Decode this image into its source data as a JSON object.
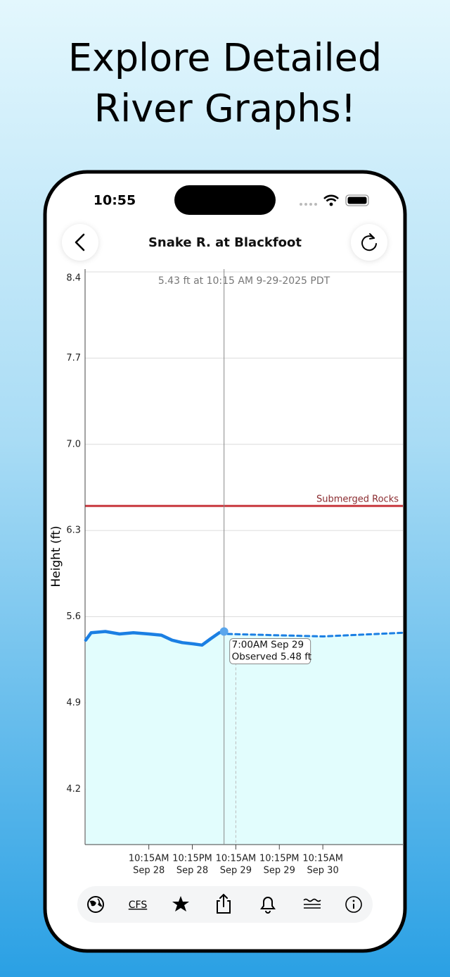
{
  "headline": [
    "Explore Detailed",
    "River Graphs!"
  ],
  "status_bar": {
    "time": "10:55"
  },
  "nav": {
    "title": "Snake R. at Blackfoot"
  },
  "toolbar": {
    "cfs": "CFS"
  },
  "chart_data": {
    "type": "line",
    "subtitle": "5.43 ft at 10:15 AM 9-29-2025 PDT",
    "y_label": "Height (ft)",
    "ylim": [
      3.75,
      8.4
    ],
    "yticks": [
      8.4,
      7.7,
      {
        "value": 7,
        "label": "7.0"
      },
      6.3,
      5.6,
      4.9,
      4.2
    ],
    "xlim": [
      "Sep 27 4:40PM",
      "Oct 1 8:20AM"
    ],
    "xticks": [
      {
        "value": "Sep 28 10:15AM",
        "label": [
          "10:15AM",
          "Sep 28"
        ]
      },
      {
        "value": "Sep 28 10:15PM",
        "label": [
          "10:15PM",
          "Sep 28"
        ]
      },
      {
        "value": "Sep 29 10:15AM",
        "label": [
          "10:15AM",
          "Sep 29"
        ]
      },
      {
        "value": "Sep 29 10:15PM",
        "label": [
          "10:15PM",
          "Sep 29"
        ]
      },
      {
        "value": "Sep 30 10:15AM",
        "label": [
          "10:15AM",
          "Sep 30"
        ]
      }
    ],
    "grid": true,
    "fill_color": "#e2fdfd",
    "series": [
      {
        "color": "#1b7fe3",
        "style": "solid",
        "x": [
          "Sep 27 4:50PM",
          "Sep 27 6:20PM",
          "Sep 27 10:15PM",
          "Sep 28 2:10AM",
          "Sep 28 6:00AM",
          "Sep 28 10:15AM",
          "Sep 28 1:45PM",
          "Sep 28 4:40PM",
          "Sep 28 7:30PM",
          "Sep 28 10:25PM",
          "Sep 29 12:55AM",
          "Sep 29 3:15AM",
          "Sep 29 5:40AM",
          "Sep 29 7:00AM"
        ],
        "values": [
          5.41,
          5.47,
          5.48,
          5.46,
          5.47,
          5.46,
          5.45,
          5.41,
          5.39,
          5.38,
          5.37,
          5.42,
          5.47,
          5.48
        ]
      },
      {
        "color": "#1b7fe3",
        "style": "dashed",
        "x": [
          "Sep 29 8:00AM",
          "Sep 30 10:15AM",
          "Oct 1 8:20AM"
        ],
        "values": [
          5.46,
          5.44,
          5.47
        ]
      }
    ],
    "threshold": {
      "label": "Submerged Rocks",
      "value": 6.5,
      "color": "#c8393f"
    },
    "cursor": {
      "x": "Sep 29 7:00AM",
      "value": 5.48,
      "label": [
        "7:00AM Sep 29",
        "Observed 5.48 ft"
      ]
    }
  }
}
